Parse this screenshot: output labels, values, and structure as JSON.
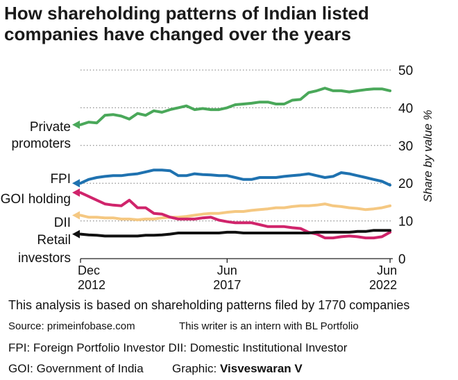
{
  "title_line1": "How shareholding patterns of Indian listed",
  "title_line2": "companies have changed over the years",
  "footnotes": {
    "analysis": "This analysis is based on shareholding patterns filed by 1770 companies",
    "source": "Source: primeinfobase.com",
    "writer": "This writer is an intern with BL Portfolio",
    "abbrev1": "FPI: Foreign Portfolio Investor DII: Domestic Institutional Investor",
    "abbrev2": "GOI: Government of India",
    "graphic_label": "Graphic:",
    "graphic_name": "Visveswaran V"
  },
  "chart_data": {
    "type": "line",
    "ylabel": "Share by value %",
    "ylim": [
      0,
      50
    ],
    "yticks": [
      0,
      10,
      20,
      30,
      40,
      50
    ],
    "xlim": [
      2012.917,
      2022.5
    ],
    "xticks": [
      {
        "value": 2012.917,
        "line1": "Dec",
        "line2": "2012"
      },
      {
        "value": 2017.417,
        "line1": "Jun",
        "line2": "2017"
      },
      {
        "value": 2022.417,
        "line1": "Jun",
        "line2": "2022"
      }
    ],
    "grid": "horizontal dotted",
    "x": [
      2012.917,
      2013.167,
      2013.417,
      2013.667,
      2013.917,
      2014.167,
      2014.417,
      2014.667,
      2014.917,
      2015.167,
      2015.417,
      2015.667,
      2015.917,
      2016.167,
      2016.417,
      2016.667,
      2016.917,
      2017.167,
      2017.417,
      2017.667,
      2017.917,
      2018.167,
      2018.417,
      2018.667,
      2018.917,
      2019.167,
      2019.417,
      2019.667,
      2019.917,
      2020.167,
      2020.417,
      2020.667,
      2020.917,
      2021.167,
      2021.417,
      2021.667,
      2021.917,
      2022.167,
      2022.417
    ],
    "series": [
      {
        "name": "Private promoters",
        "color": "#4aa85a",
        "values": [
          35.5,
          36.2,
          36.0,
          38.0,
          38.2,
          37.8,
          37.0,
          38.5,
          38.0,
          39.2,
          38.8,
          39.5,
          40.0,
          40.5,
          39.5,
          39.8,
          39.5,
          39.5,
          40.0,
          40.8,
          41.0,
          41.2,
          41.5,
          41.5,
          41.0,
          41.0,
          42.0,
          42.2,
          44.0,
          44.5,
          45.2,
          44.5,
          44.5,
          44.2,
          44.5,
          44.8,
          45.0,
          45.0,
          44.5
        ]
      },
      {
        "name": "FPI",
        "color": "#1f72b0",
        "values": [
          20.0,
          21.0,
          21.5,
          21.8,
          22.0,
          22.0,
          22.3,
          22.5,
          23.0,
          23.5,
          23.5,
          23.3,
          22.0,
          22.0,
          22.5,
          22.3,
          22.2,
          22.0,
          22.0,
          21.5,
          21.0,
          21.0,
          21.5,
          21.5,
          21.5,
          21.8,
          22.0,
          22.2,
          22.5,
          22.0,
          21.5,
          21.8,
          22.8,
          22.5,
          22.0,
          21.5,
          21.0,
          20.5,
          19.5
        ]
      },
      {
        "name": "GOI holding",
        "color": "#d0246b",
        "values": [
          17.5,
          16.5,
          15.5,
          14.5,
          14.2,
          14.0,
          15.5,
          13.5,
          13.5,
          12.0,
          11.8,
          11.0,
          10.5,
          10.5,
          10.5,
          10.8,
          11.0,
          10.2,
          9.8,
          9.5,
          9.5,
          9.5,
          9.0,
          8.5,
          8.5,
          8.5,
          8.2,
          8.0,
          7.0,
          6.5,
          5.5,
          5.5,
          5.8,
          6.0,
          5.8,
          5.5,
          5.5,
          5.8,
          7.0
        ]
      },
      {
        "name": "DII",
        "color": "#f5c882",
        "values": [
          11.5,
          11.0,
          11.0,
          10.8,
          10.8,
          10.5,
          10.5,
          10.3,
          10.5,
          10.5,
          10.8,
          11.0,
          11.0,
          11.2,
          11.5,
          11.8,
          12.0,
          12.0,
          12.3,
          12.5,
          12.5,
          12.8,
          13.0,
          13.2,
          13.5,
          13.5,
          13.8,
          14.0,
          14.0,
          14.2,
          14.5,
          14.0,
          13.8,
          13.5,
          13.3,
          13.0,
          13.2,
          13.5,
          14.0
        ]
      },
      {
        "name": "Retail investors",
        "color": "#111111",
        "values": [
          6.5,
          6.3,
          6.2,
          6.0,
          6.0,
          6.0,
          6.0,
          6.0,
          6.2,
          6.2,
          6.3,
          6.5,
          6.8,
          6.8,
          6.8,
          6.8,
          6.8,
          6.8,
          7.0,
          7.0,
          6.8,
          6.8,
          6.8,
          6.8,
          6.8,
          6.8,
          6.8,
          6.8,
          6.8,
          7.0,
          7.0,
          7.0,
          7.0,
          7.0,
          7.2,
          7.2,
          7.5,
          7.5,
          7.5
        ]
      }
    ],
    "series_labels": [
      {
        "series": 0,
        "lines": [
          "Private",
          "promoters"
        ]
      },
      {
        "series": 1,
        "lines": [
          "FPI"
        ]
      },
      {
        "series": 2,
        "lines": [
          "GOI holding"
        ]
      },
      {
        "series": 3,
        "lines": [
          "DII"
        ]
      },
      {
        "series": 4,
        "lines": [
          "Retail",
          "investors"
        ]
      }
    ]
  }
}
